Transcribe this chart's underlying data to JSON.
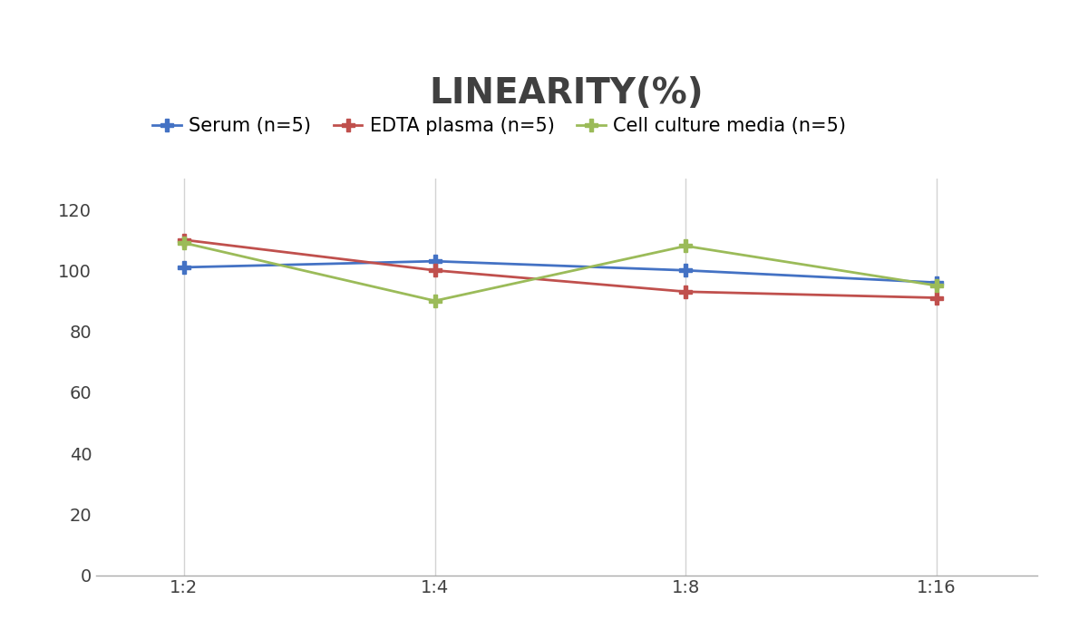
{
  "title": "LINEARITY(%)",
  "title_fontsize": 28,
  "title_fontweight": "bold",
  "title_color": "#404040",
  "x_labels": [
    "1:2",
    "1:4",
    "1:8",
    "1:16"
  ],
  "series": [
    {
      "label": "Serum (n=5)",
      "values": [
        101,
        103,
        100,
        96
      ],
      "color": "#4472C4",
      "marker": "P",
      "markersize": 10,
      "linewidth": 2
    },
    {
      "label": "EDTA plasma (n=5)",
      "values": [
        110,
        100,
        93,
        91
      ],
      "color": "#C0504D",
      "marker": "P",
      "markersize": 10,
      "linewidth": 2
    },
    {
      "label": "Cell culture media (n=5)",
      "values": [
        109,
        90,
        108,
        95
      ],
      "color": "#9BBB59",
      "marker": "P",
      "markersize": 10,
      "linewidth": 2
    }
  ],
  "ylim": [
    0,
    130
  ],
  "yticks": [
    0,
    20,
    40,
    60,
    80,
    100,
    120
  ],
  "grid_color": "#D3D3D3",
  "background_color": "#FFFFFF",
  "legend_fontsize": 15,
  "tick_fontsize": 14
}
